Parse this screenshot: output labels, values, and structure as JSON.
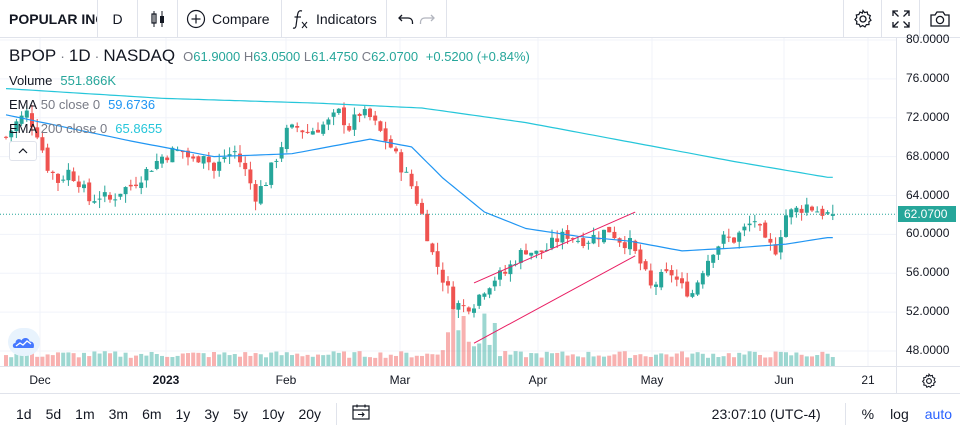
{
  "toolbar": {
    "symbol_search": "POPULAR INC",
    "interval": "D",
    "compare_label": "Compare",
    "indicators_label": "Indicators"
  },
  "legend": {
    "ticker": "BPOP",
    "interval": "1D",
    "exchange": "NASDAQ",
    "ohlc": {
      "o_key": "O",
      "o": "61.9000",
      "h_key": "H",
      "h": "63.0500",
      "l_key": "L",
      "l": "61.4750",
      "c_key": "C",
      "c": "62.0700",
      "change": "+0.5200 (+0.84%)"
    },
    "volume": {
      "name": "Volume",
      "value": "551.866K"
    },
    "ema50": {
      "name": "EMA",
      "params": "50 close 0",
      "value": "59.6736"
    },
    "ema200": {
      "name": "EMA",
      "params": "200 close 0",
      "value": "65.8655"
    }
  },
  "price_scale": {
    "labels": [
      "80.0000",
      "76.0000",
      "72.0000",
      "68.0000",
      "64.0000",
      "60.0000",
      "56.0000",
      "52.0000",
      "48.0000"
    ],
    "last_price": "62.0700"
  },
  "time_axis": {
    "labels": [
      {
        "text": "Dec",
        "bold": false
      },
      {
        "text": "2023",
        "bold": true
      },
      {
        "text": "Feb",
        "bold": false
      },
      {
        "text": "Mar",
        "bold": false
      },
      {
        "text": "Apr",
        "bold": false
      },
      {
        "text": "May",
        "bold": false
      },
      {
        "text": "Jun",
        "bold": false
      },
      {
        "text": "21",
        "bold": false
      }
    ]
  },
  "bottom_bar": {
    "ranges": [
      "1d",
      "5d",
      "1m",
      "3m",
      "6m",
      "1y",
      "3y",
      "5y",
      "10y",
      "20y"
    ],
    "clock": "23:07:10 (UTC-4)",
    "percent_label": "%",
    "log_label": "log",
    "auto_label": "auto"
  },
  "colors": {
    "up": "#26a69a",
    "down": "#ef5350",
    "ema50": "#2196f3",
    "ema200": "#26c6da",
    "channel": "#e91e63"
  },
  "chart_data": {
    "type": "candlestick",
    "ylim": [
      47,
      81
    ],
    "close_anchors": [
      [
        0,
        70.0
      ],
      [
        2,
        71.5
      ],
      [
        4,
        72.5
      ],
      [
        6,
        70.5
      ],
      [
        8,
        67.0
      ],
      [
        10,
        65.5
      ],
      [
        12,
        66.5
      ],
      [
        14,
        65.5
      ],
      [
        16,
        63.5
      ],
      [
        18,
        64.0
      ],
      [
        20,
        63.5
      ],
      [
        22,
        64.5
      ],
      [
        24,
        65.0
      ],
      [
        26,
        66.0
      ],
      [
        28,
        67.0
      ],
      [
        30,
        68.0
      ],
      [
        32,
        68.5
      ],
      [
        34,
        68.5
      ],
      [
        36,
        67.5
      ],
      [
        38,
        68.5
      ],
      [
        40,
        66.5
      ],
      [
        42,
        68.0
      ],
      [
        44,
        68.5
      ],
      [
        46,
        66.5
      ],
      [
        48,
        64.0
      ],
      [
        50,
        65.5
      ],
      [
        52,
        68.0
      ],
      [
        54,
        70.5
      ],
      [
        56,
        71.0
      ],
      [
        58,
        70.5
      ],
      [
        60,
        71.0
      ],
      [
        62,
        71.5
      ],
      [
        64,
        72.5
      ],
      [
        66,
        71.0
      ],
      [
        68,
        72.5
      ],
      [
        70,
        72.0
      ],
      [
        72,
        70.5
      ],
      [
        74,
        69.0
      ],
      [
        76,
        67.0
      ],
      [
        78,
        65.0
      ],
      [
        80,
        62.0
      ],
      [
        82,
        58.0
      ],
      [
        84,
        55.5
      ],
      [
        86,
        53.0
      ],
      [
        88,
        52.5
      ],
      [
        90,
        53.0
      ],
      [
        92,
        54.5
      ],
      [
        94,
        55.5
      ],
      [
        96,
        56.0
      ],
      [
        98,
        57.5
      ],
      [
        100,
        58.5
      ],
      [
        102,
        58.0
      ],
      [
        104,
        58.5
      ],
      [
        106,
        59.5
      ],
      [
        108,
        60.0
      ],
      [
        110,
        59.5
      ],
      [
        112,
        59.5
      ],
      [
        114,
        60.0
      ],
      [
        116,
        60.5
      ],
      [
        118,
        59.5
      ],
      [
        120,
        59.0
      ],
      [
        122,
        57.0
      ],
      [
        124,
        54.5
      ],
      [
        126,
        55.5
      ],
      [
        128,
        56.0
      ],
      [
        130,
        54.5
      ],
      [
        132,
        54.0
      ],
      [
        134,
        56.5
      ],
      [
        136,
        58.5
      ],
      [
        138,
        59.5
      ],
      [
        140,
        59.5
      ],
      [
        142,
        60.5
      ],
      [
        144,
        61.5
      ],
      [
        146,
        59.0
      ],
      [
        148,
        58.5
      ],
      [
        150,
        62.0
      ],
      [
        152,
        62.5
      ],
      [
        154,
        63.0
      ],
      [
        156,
        62.5
      ],
      [
        158,
        62.07
      ]
    ],
    "ema50": [
      [
        0,
        72.3
      ],
      [
        25,
        69.5
      ],
      [
        40,
        68.0
      ],
      [
        55,
        68.3
      ],
      [
        70,
        69.8
      ],
      [
        78,
        69.0
      ],
      [
        84,
        65.8
      ],
      [
        92,
        62.3
      ],
      [
        100,
        60.6
      ],
      [
        110,
        59.8
      ],
      [
        120,
        59.3
      ],
      [
        130,
        58.3
      ],
      [
        140,
        58.6
      ],
      [
        150,
        59.0
      ],
      [
        158,
        59.67
      ]
    ],
    "ema200": [
      [
        0,
        75.0
      ],
      [
        30,
        74.0
      ],
      [
        60,
        73.5
      ],
      [
        80,
        73.0
      ],
      [
        100,
        71.5
      ],
      [
        120,
        69.5
      ],
      [
        140,
        67.5
      ],
      [
        158,
        65.87
      ]
    ],
    "channel_lines": [
      {
        "from": [
          90,
          55.0
        ],
        "to": [
          121,
          62.3
        ]
      },
      {
        "from": [
          90,
          48.8
        ],
        "to": [
          121,
          57.8
        ]
      }
    ],
    "time_labels": [
      "Dec",
      "2023",
      "Feb",
      "Mar",
      "Apr",
      "May",
      "Jun",
      "21"
    ]
  }
}
